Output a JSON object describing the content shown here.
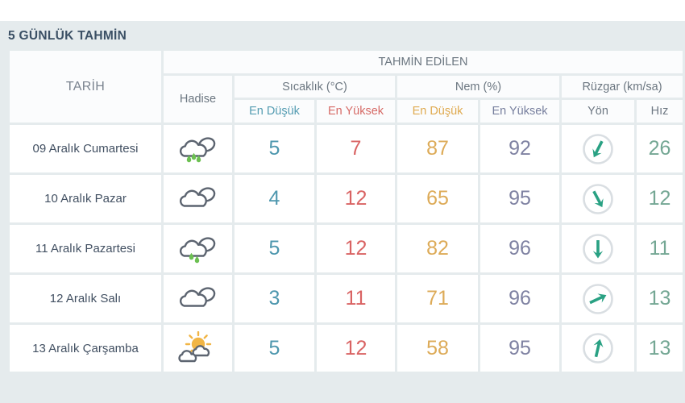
{
  "title": "5 GÜNLÜK TAHMİN",
  "table": {
    "group_header": "TAHMİN EDİLEN",
    "headers": {
      "date": "TARİH",
      "condition": "Hadise",
      "temperature": "Sıcaklık (°C)",
      "humidity": "Nem (%)",
      "wind": "Rüzgar (km/sa)",
      "temp_min": "En Düşük",
      "temp_max": "En Yüksek",
      "hum_min": "En Düşük",
      "hum_max": "En Yüksek",
      "wind_dir": "Yön",
      "wind_speed": "Hız"
    },
    "rows": [
      {
        "date": "09 Aralık Cumartesi",
        "condition_icon": "rainy-icon",
        "temp_min": "5",
        "temp_max": "7",
        "hum_min": "87",
        "hum_max": "92",
        "wind_dir_deg": 207,
        "wind_speed": "26"
      },
      {
        "date": "10 Aralık Pazar",
        "condition_icon": "cloudy-icon",
        "temp_min": "4",
        "temp_max": "12",
        "hum_min": "65",
        "hum_max": "95",
        "wind_dir_deg": 152,
        "wind_speed": "12"
      },
      {
        "date": "11 Aralık Pazartesi",
        "condition_icon": "rainy-icon",
        "temp_min": "5",
        "temp_max": "12",
        "hum_min": "82",
        "hum_max": "96",
        "wind_dir_deg": 180,
        "wind_speed": "11"
      },
      {
        "date": "12 Aralık Salı",
        "condition_icon": "cloudy-icon",
        "temp_min": "3",
        "temp_max": "11",
        "hum_min": "71",
        "hum_max": "96",
        "wind_dir_deg": 65,
        "wind_speed": "13"
      },
      {
        "date": "13 Aralık Çarşamba",
        "condition_icon": "partly-sunny-icon",
        "temp_min": "5",
        "temp_max": "12",
        "hum_min": "58",
        "hum_max": "95",
        "wind_dir_deg": 13,
        "wind_speed": "13"
      }
    ]
  },
  "colors": {
    "page_background": "#e5ebed",
    "title_text": "#3b5065",
    "temp_min": "#4e97ae",
    "temp_max": "#d96363",
    "humidity_min": "#ddab58",
    "humidity_max": "#7f82a2",
    "wind_speed": "#74a794",
    "wind_arrow": "#29a183",
    "cloud_outline": "#5c6470",
    "rain_drop": "#6cc052",
    "sun": "#f1b545"
  }
}
